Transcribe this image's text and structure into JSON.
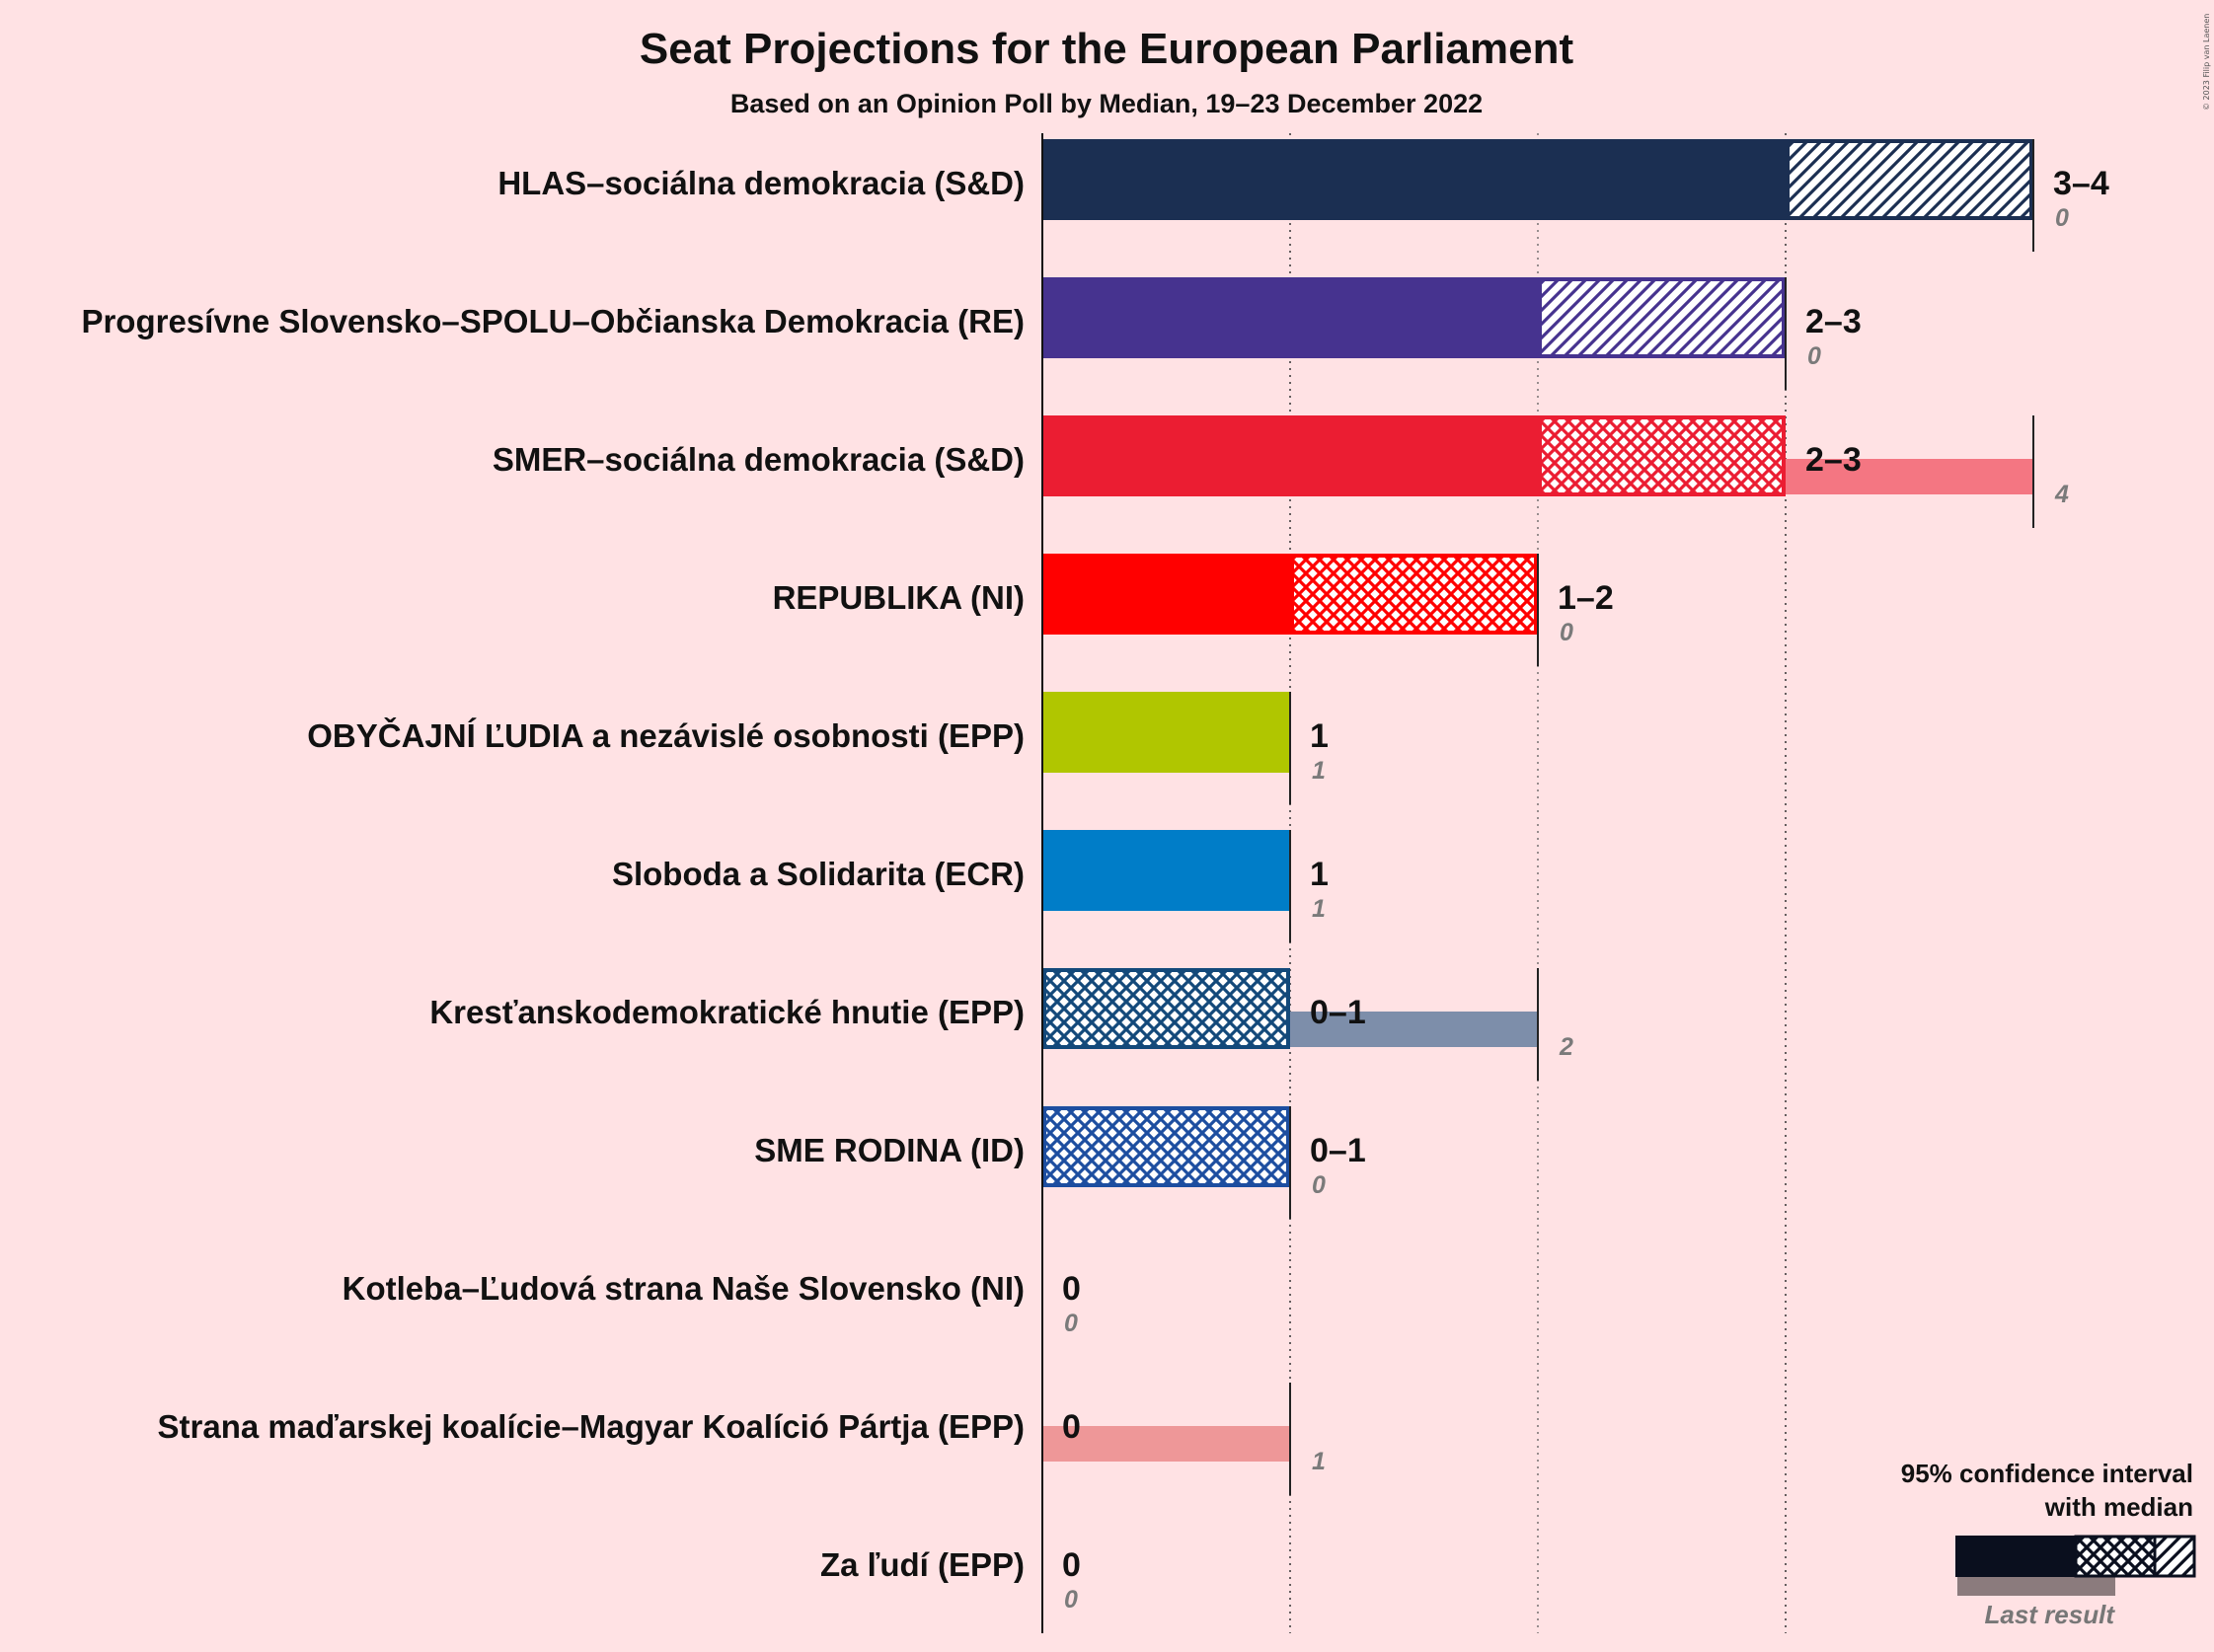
{
  "chart_data": {
    "type": "bar",
    "title": "Seat Projections for the European Parliament",
    "subtitle": "Based on an Opinion Poll by Median, 19–23 December 2022",
    "xlim": [
      0,
      4
    ],
    "parties": [
      {
        "name": "HLAS–sociálna demokracia (S&D)",
        "color": "#1b2f52",
        "low": 3,
        "high": 4,
        "pattern": "hatch",
        "range_label": "3–4",
        "last": 0,
        "last_label": "0"
      },
      {
        "name": "Progresívne Slovensko–SPOLU–Občianska Demokracia (RE)",
        "color": "#46338f",
        "low": 2,
        "high": 3,
        "pattern": "hatch",
        "range_label": "2–3",
        "last": 0,
        "last_label": "0"
      },
      {
        "name": "SMER–sociálna demokracia (S&D)",
        "color": "#eb1d32",
        "low": 2,
        "high": 3,
        "pattern": "cross",
        "range_label": "2–3",
        "last": 4,
        "last_label": "4"
      },
      {
        "name": "REPUBLIKA (NI)",
        "color": "#ff0000",
        "low": 1,
        "high": 2,
        "pattern": "cross",
        "range_label": "1–2",
        "last": 0,
        "last_label": "0"
      },
      {
        "name": "OBYČAJNÍ ĽUDIA a nezávislé osobnosti (EPP)",
        "color": "#b0c600",
        "low": 1,
        "high": 1,
        "pattern": "none",
        "range_label": "1",
        "last": 1,
        "last_label": "1"
      },
      {
        "name": "Sloboda a Solidarita (ECR)",
        "color": "#007dc8",
        "low": 1,
        "high": 1,
        "pattern": "none",
        "range_label": "1",
        "last": 1,
        "last_label": "1"
      },
      {
        "name": "Kresťanskodemokratické hnutie (EPP)",
        "color": "#13497a",
        "low": 0,
        "high": 1,
        "pattern": "cross",
        "range_label": "0–1",
        "last": 2,
        "last_label": "2"
      },
      {
        "name": "SME RODINA (ID)",
        "color": "#1d4ea0",
        "low": 0,
        "high": 1,
        "pattern": "cross",
        "range_label": "0–1",
        "last": 0,
        "last_label": "0"
      },
      {
        "name": "Kotleba–Ľudová strana Naše Slovensko (NI)",
        "color": "#333333",
        "low": 0,
        "high": 0,
        "pattern": "none",
        "range_label": "0",
        "last": 0,
        "last_label": "0"
      },
      {
        "name": "Strana maďarskej koalície–Magyar Koalíció Pártja (EPP)",
        "color": "#e05a5a",
        "low": 0,
        "high": 0,
        "pattern": "none",
        "range_label": "0",
        "last": 1,
        "last_label": "1"
      },
      {
        "name": "Za ľudí (EPP)",
        "color": "#333333",
        "low": 0,
        "high": 0,
        "pattern": "none",
        "range_label": "0",
        "last": 0,
        "last_label": "0"
      }
    ],
    "legend": {
      "line1": "95% confidence interval",
      "line2": "with median",
      "last_result": "Last result",
      "placement": "bottom-right"
    },
    "copyright": "© 2023 Filip van Laenen"
  }
}
